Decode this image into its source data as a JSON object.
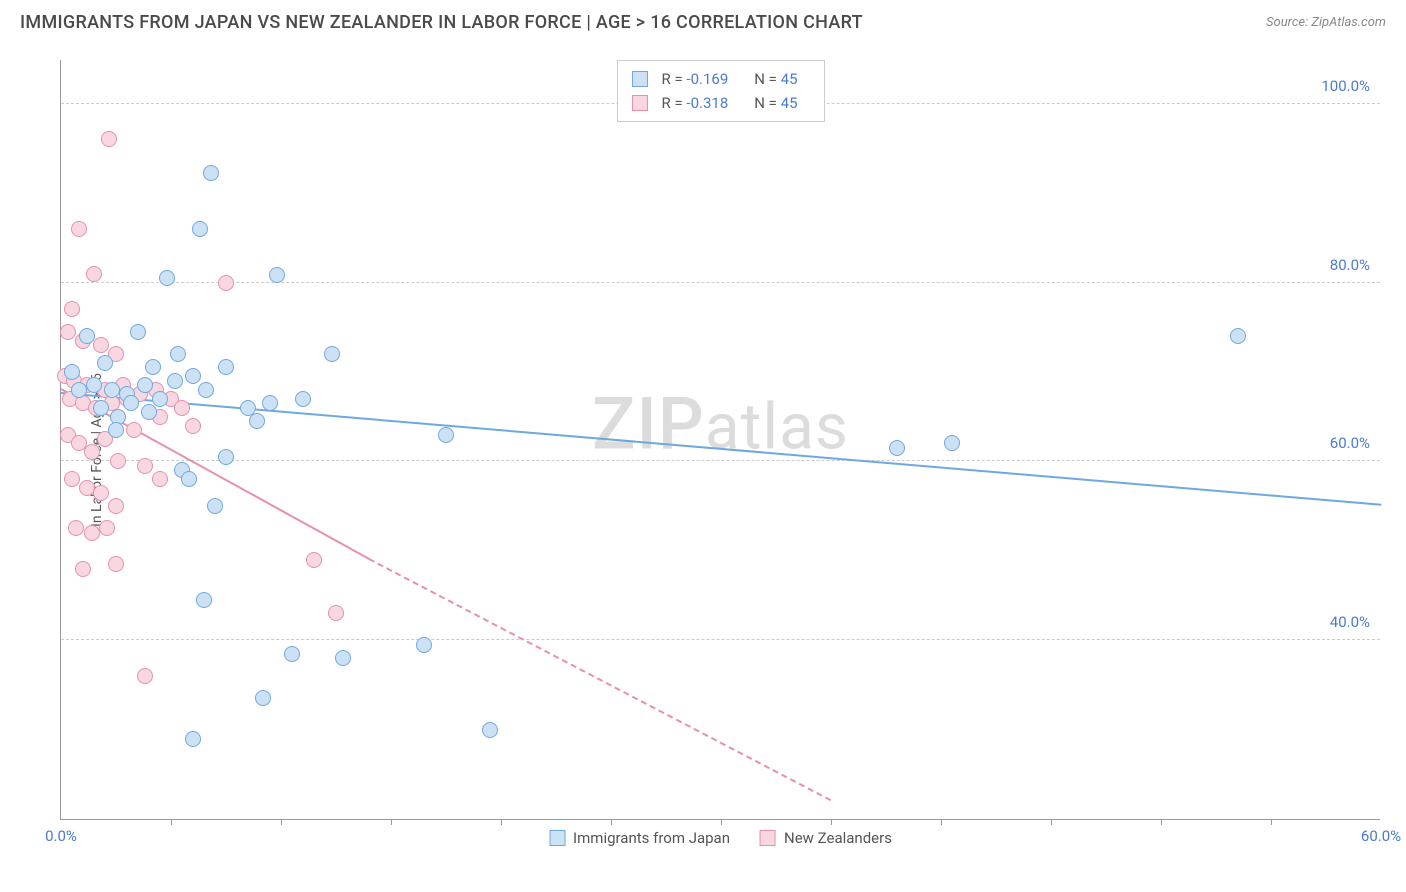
{
  "header": {
    "title": "IMMIGRANTS FROM JAPAN VS NEW ZEALANDER IN LABOR FORCE | AGE > 16 CORRELATION CHART",
    "source": "Source: ZipAtlas.com"
  },
  "watermark": {
    "prefix": "ZIP",
    "suffix": "atlas"
  },
  "chart": {
    "type": "scatter",
    "ylabel": "In Labor Force | Age > 16",
    "xlim": [
      0,
      60
    ],
    "ylim": [
      20,
      105
    ],
    "background_color": "#ffffff",
    "grid_color": "#cccccc",
    "axis_color": "#999999",
    "tick_color": "#4a7bd0",
    "font_size_ticks": 15,
    "font_size_labels": 14,
    "yticks": [
      {
        "v": 40,
        "label": "40.0%"
      },
      {
        "v": 60,
        "label": "60.0%"
      },
      {
        "v": 80,
        "label": "80.0%"
      },
      {
        "v": 100,
        "label": "100.0%"
      }
    ],
    "xticks_minor": [
      5,
      10,
      15,
      20,
      25,
      30,
      35,
      40,
      45,
      50,
      55
    ],
    "xticks_labeled": [
      {
        "v": 0,
        "label": "0.0%"
      },
      {
        "v": 60,
        "label": "60.0%"
      }
    ],
    "marker_radius": 8,
    "trend_line_width": 2,
    "series": {
      "japan": {
        "label": "Immigrants from Japan",
        "fill": "#cde1f5",
        "stroke": "#6fa8e0",
        "R": "-0.169",
        "N": "45",
        "trend": {
          "x1": 0,
          "y1": 67.5,
          "x2": 60,
          "y2": 55,
          "dash_after_x": 60
        },
        "points": [
          [
            6.8,
            92.2
          ],
          [
            6.3,
            86.0
          ],
          [
            4.8,
            80.5
          ],
          [
            9.8,
            80.8
          ],
          [
            1.2,
            74.0
          ],
          [
            3.5,
            74.5
          ],
          [
            2.0,
            71.0
          ],
          [
            4.2,
            70.5
          ],
          [
            5.3,
            72.0
          ],
          [
            0.8,
            68.0
          ],
          [
            1.5,
            68.5
          ],
          [
            2.3,
            68.0
          ],
          [
            3.0,
            67.5
          ],
          [
            3.8,
            68.5
          ],
          [
            4.5,
            67.0
          ],
          [
            5.2,
            69.0
          ],
          [
            6.0,
            69.5
          ],
          [
            6.6,
            68.0
          ],
          [
            7.5,
            70.5
          ],
          [
            12.3,
            72.0
          ],
          [
            8.5,
            66.0
          ],
          [
            8.9,
            64.5
          ],
          [
            9.5,
            66.5
          ],
          [
            5.5,
            59.0
          ],
          [
            5.8,
            58.0
          ],
          [
            2.6,
            65.0
          ],
          [
            7.0,
            55.0
          ],
          [
            6.5,
            44.5
          ],
          [
            9.2,
            33.5
          ],
          [
            12.8,
            38.0
          ],
          [
            16.5,
            39.5
          ],
          [
            10.5,
            38.5
          ],
          [
            19.5,
            30.0
          ],
          [
            6.0,
            29.0
          ],
          [
            17.5,
            63.0
          ],
          [
            38.0,
            61.5
          ],
          [
            40.5,
            62.0
          ],
          [
            53.5,
            74.0
          ],
          [
            11.0,
            67.0
          ],
          [
            0.5,
            70.0
          ],
          [
            1.8,
            66.0
          ],
          [
            2.5,
            63.5
          ],
          [
            3.2,
            66.5
          ],
          [
            4.0,
            65.5
          ],
          [
            7.5,
            60.5
          ]
        ]
      },
      "nz": {
        "label": "New Zealanders",
        "fill": "#f8d7e0",
        "stroke": "#e890aa",
        "R": "-0.318",
        "N": "45",
        "trend": {
          "x1": 0,
          "y1": 68.0,
          "x2": 14,
          "y2": 49,
          "dash_after_x": 14,
          "dash_x2": 35,
          "dash_y2": 22
        },
        "points": [
          [
            2.2,
            96.0
          ],
          [
            0.8,
            86.0
          ],
          [
            1.5,
            81.0
          ],
          [
            0.5,
            77.0
          ],
          [
            0.3,
            74.5
          ],
          [
            1.0,
            73.5
          ],
          [
            1.8,
            73.0
          ],
          [
            2.5,
            72.0
          ],
          [
            7.5,
            80.0
          ],
          [
            0.2,
            69.5
          ],
          [
            0.6,
            69.0
          ],
          [
            1.2,
            68.5
          ],
          [
            2.0,
            68.0
          ],
          [
            2.8,
            68.5
          ],
          [
            0.4,
            67.0
          ],
          [
            1.0,
            66.5
          ],
          [
            1.6,
            66.0
          ],
          [
            2.3,
            66.5
          ],
          [
            3.0,
            67.0
          ],
          [
            3.6,
            67.5
          ],
          [
            4.3,
            68.0
          ],
          [
            5.0,
            67.0
          ],
          [
            0.3,
            63.0
          ],
          [
            0.8,
            62.0
          ],
          [
            1.4,
            61.0
          ],
          [
            2.0,
            62.5
          ],
          [
            2.6,
            60.0
          ],
          [
            3.3,
            63.5
          ],
          [
            0.5,
            58.0
          ],
          [
            1.2,
            57.0
          ],
          [
            1.8,
            56.5
          ],
          [
            2.5,
            55.0
          ],
          [
            0.7,
            52.5
          ],
          [
            1.4,
            52.0
          ],
          [
            2.1,
            52.5
          ],
          [
            1.0,
            48.0
          ],
          [
            2.5,
            48.5
          ],
          [
            11.5,
            49.0
          ],
          [
            12.5,
            43.0
          ],
          [
            3.8,
            36.0
          ],
          [
            5.5,
            66.0
          ],
          [
            4.5,
            65.0
          ],
          [
            3.8,
            59.5
          ],
          [
            4.5,
            58.0
          ],
          [
            6.0,
            64.0
          ]
        ]
      }
    },
    "legend_top": {
      "r_label": "R =",
      "n_label": "N ="
    }
  }
}
